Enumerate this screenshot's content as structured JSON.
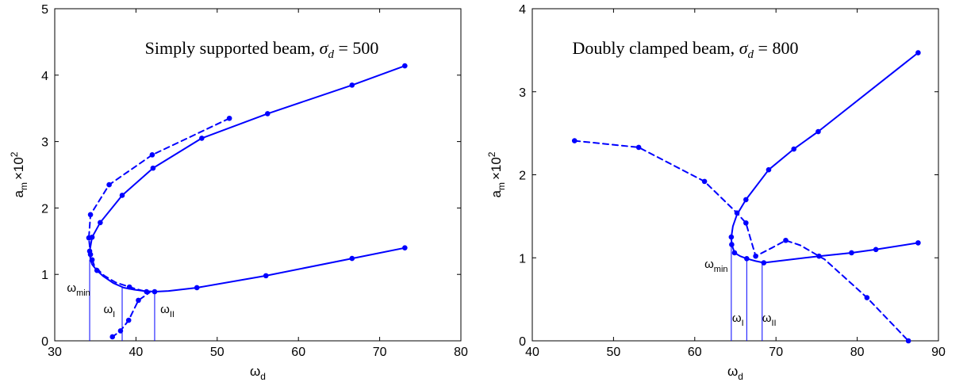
{
  "chart_data": [
    {
      "type": "line",
      "title_text": "Simply supported beam, ",
      "title_math": "σ",
      "title_math_sub": "d",
      "title_value": " = 500",
      "xlabel_main": "ω",
      "xlabel_sub": "d",
      "ylabel_main": "a",
      "ylabel_sub": "m",
      "ylabel_mult": "×10",
      "ylabel_exp": "2",
      "xlim": [
        30,
        80
      ],
      "ylim": [
        0,
        5
      ],
      "xticks": [
        "30",
        "40",
        "50",
        "60",
        "70",
        "80"
      ],
      "yticks": [
        "0",
        "1",
        "2",
        "3",
        "4",
        "5"
      ],
      "grid": false,
      "color": "#0000ff",
      "series": [
        {
          "style": "solid",
          "x": [
            73.1,
            66.6,
            56.2,
            48.1,
            42.1,
            38.3,
            35.6,
            34.6,
            34.3,
            34.35,
            34.4,
            34.6,
            35.2,
            36.0,
            37.2,
            38.5,
            39.8,
            41.0,
            42.3,
            44.0,
            47.5,
            56.0,
            66.6,
            73.1
          ],
          "y": [
            4.14,
            3.85,
            3.42,
            3.05,
            2.6,
            2.19,
            1.78,
            1.56,
            1.35,
            1.28,
            1.22,
            1.15,
            1.06,
            0.97,
            0.87,
            0.8,
            0.77,
            0.75,
            0.74,
            0.75,
            0.8,
            0.98,
            1.24,
            1.4
          ],
          "markers_x": [
            73.1,
            66.6,
            56.2,
            48.1,
            42.1,
            38.3,
            35.6,
            34.6,
            34.3,
            34.6,
            35.2,
            42.3,
            47.5,
            56.0,
            66.6,
            73.1
          ],
          "markers_y": [
            4.14,
            3.85,
            3.42,
            3.05,
            2.6,
            2.19,
            1.78,
            1.56,
            1.35,
            1.22,
            1.06,
            0.74,
            0.8,
            0.98,
            1.24,
            1.4
          ]
        },
        {
          "style": "dashed",
          "x": [
            51.5,
            42.0,
            36.7,
            34.4,
            34.2,
            34.4,
            34.9,
            36.1,
            37.5,
            39.2,
            40.0,
            41.3,
            41.7,
            40.3,
            39.1,
            38.1,
            37.1
          ],
          "y": [
            3.35,
            2.8,
            2.35,
            1.9,
            1.55,
            1.3,
            1.12,
            0.98,
            0.88,
            0.81,
            0.78,
            0.74,
            0.73,
            0.61,
            0.31,
            0.15,
            0.06
          ],
          "markers_x": [
            51.5,
            42.0,
            36.7,
            34.4,
            34.2,
            34.4,
            39.2,
            41.3,
            40.3,
            39.1,
            38.1,
            37.1
          ],
          "markers_y": [
            3.35,
            2.8,
            2.35,
            1.9,
            1.55,
            1.3,
            0.81,
            0.74,
            0.61,
            0.31,
            0.15,
            0.06
          ]
        }
      ],
      "vlines": [
        {
          "x": 34.3,
          "y": 1.22,
          "label": "ω",
          "sub": "min",
          "lx": 31.5,
          "ly": 0.74
        },
        {
          "x": 38.3,
          "y": 0.8,
          "label": "ω",
          "sub": "I",
          "lx": 36.0,
          "ly": 0.42
        },
        {
          "x": 42.3,
          "y": 0.74,
          "label": "ω",
          "sub": "II",
          "lx": 43.0,
          "ly": 0.42
        }
      ]
    },
    {
      "type": "line",
      "title_text": "Doubly clamped beam, ",
      "title_math": "σ",
      "title_math_sub": "d",
      "title_value": " = 800",
      "xlabel_main": "ω",
      "xlabel_sub": "d",
      "ylabel_main": "a",
      "ylabel_sub": "m",
      "ylabel_mult": "×10",
      "ylabel_exp": "2",
      "xlim": [
        40,
        90
      ],
      "ylim": [
        0,
        4
      ],
      "xticks": [
        "40",
        "50",
        "60",
        "70",
        "80",
        "90"
      ],
      "yticks": [
        "0",
        "1",
        "2",
        "3",
        "4"
      ],
      "grid": false,
      "color": "#0000ff",
      "series": [
        {
          "style": "solid",
          "x": [
            87.5,
            75.2,
            72.2,
            69.1,
            66.3,
            65.2,
            64.7,
            64.5,
            64.55,
            64.9,
            65.6,
            66.4,
            67.5,
            68.5,
            75.3,
            79.3,
            82.3,
            87.5
          ],
          "y": [
            3.47,
            2.52,
            2.31,
            2.06,
            1.7,
            1.52,
            1.38,
            1.25,
            1.16,
            1.06,
            1.02,
            0.99,
            0.96,
            0.94,
            1.02,
            1.06,
            1.1,
            1.18
          ],
          "markers_x": [
            87.5,
            75.2,
            72.2,
            69.1,
            66.3,
            64.5,
            64.55,
            64.9,
            66.4,
            68.5,
            75.3,
            79.3,
            82.3,
            87.5
          ],
          "markers_y": [
            3.47,
            2.52,
            2.31,
            2.06,
            1.7,
            1.25,
            1.16,
            1.06,
            0.99,
            0.94,
            1.02,
            1.06,
            1.1,
            1.18
          ],
          "extra_markers_x": [],
          "extra_markers_y": []
        },
        {
          "style": "dashed",
          "x": [
            45.2,
            53.1,
            61.2,
            65.2,
            66.3,
            67.5,
            69.5,
            71.2,
            73.0,
            76.0,
            81.2,
            86.3
          ],
          "y": [
            2.41,
            2.33,
            1.92,
            1.54,
            1.42,
            1.02,
            1.12,
            1.21,
            1.15,
            0.98,
            0.52,
            0.0
          ],
          "markers_x": [
            45.2,
            53.1,
            61.2,
            65.2,
            66.3,
            67.5,
            71.2,
            81.2,
            86.3
          ],
          "markers_y": [
            2.41,
            2.33,
            1.92,
            1.54,
            1.42,
            1.02,
            1.21,
            0.52,
            0.0
          ]
        }
      ],
      "vlines": [
        {
          "x": 64.5,
          "y": 1.25,
          "label": "ω",
          "sub": "min",
          "lx": 61.2,
          "ly": 0.88
        },
        {
          "x": 66.4,
          "y": 0.99,
          "label": "ω",
          "sub": "I",
          "lx": 64.6,
          "ly": 0.23
        },
        {
          "x": 68.3,
          "y": 0.94,
          "label": "ω",
          "sub": "II",
          "lx": 68.3,
          "ly": 0.23
        }
      ]
    }
  ]
}
